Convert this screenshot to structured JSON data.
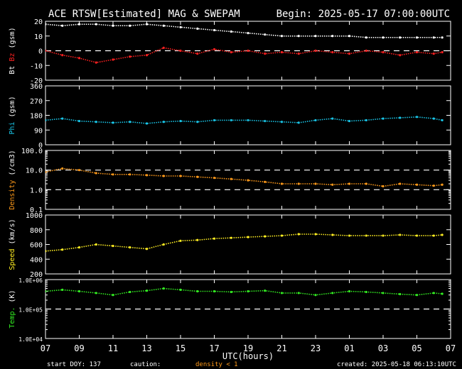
{
  "header": {
    "title": "ACE RTSW[Estimated] MAG & SWEPAM",
    "begin": "Begin: 2025-05-17 07:00:00UTC"
  },
  "footer": {
    "start_doy": "start DOY: 137",
    "caution": "caution:",
    "density_note": "density < 1",
    "created": "created: 2025-05-18 06:13:10UTC"
  },
  "x_axis": {
    "label": "UTC(hours)",
    "ticks": [
      "07",
      "09",
      "11",
      "13",
      "15",
      "17",
      "19",
      "21",
      "23",
      "01",
      "03",
      "05",
      "07"
    ]
  },
  "colors": {
    "bt": "#ffffff",
    "bz": "#ff2020",
    "phi": "#19c4e6",
    "density": "#ff9a1a",
    "speed": "#ffee22",
    "temp": "#33ee22",
    "axes": "#ffffff",
    "dash": "#ffffff"
  },
  "chart_data": [
    {
      "type": "scatter",
      "panel": "bt_bz",
      "ylabel_parts": [
        "Bt",
        "Bz",
        "(gsm)"
      ],
      "ylim": [
        -20,
        20
      ],
      "yticks": [
        "20",
        "10",
        "0",
        "-10",
        "-20"
      ],
      "reference_lines": [
        0
      ],
      "x_range_hours": [
        0,
        24
      ],
      "series": [
        {
          "name": "Bt",
          "color": "#ffffff",
          "x": [
            0,
            1,
            2,
            3,
            4,
            5,
            6,
            7,
            8,
            9,
            10,
            11,
            12,
            13,
            14,
            15,
            16,
            17,
            18,
            19,
            20,
            21,
            22,
            23,
            23.5
          ],
          "y": [
            18,
            17,
            18,
            18,
            17,
            17,
            18,
            17,
            16,
            15,
            14,
            13,
            12,
            11,
            10,
            10,
            10,
            10,
            10,
            9,
            9,
            9,
            9,
            9,
            9
          ]
        },
        {
          "name": "Bz",
          "color": "#ff2020",
          "x": [
            0,
            1,
            2,
            3,
            4,
            5,
            6,
            7,
            8,
            9,
            10,
            11,
            12,
            13,
            14,
            15,
            16,
            17,
            18,
            19,
            20,
            21,
            22,
            23,
            23.5
          ],
          "y": [
            0,
            -3,
            -5,
            -8,
            -6,
            -4,
            -3,
            2,
            0,
            -2,
            1,
            -1,
            0,
            -2,
            -1,
            -2,
            0,
            -1,
            -2,
            0,
            -1,
            -3,
            -1,
            -2,
            -1
          ]
        }
      ]
    },
    {
      "type": "scatter",
      "panel": "phi",
      "ylabel_parts": [
        "Phi",
        "(gsm)"
      ],
      "ylim": [
        0,
        360
      ],
      "yticks": [
        "360",
        "270",
        "180",
        "90",
        "0"
      ],
      "x_range_hours": [
        0,
        24
      ],
      "series": [
        {
          "name": "Phi",
          "color": "#19c4e6",
          "x": [
            0,
            1,
            2,
            3,
            4,
            5,
            6,
            7,
            8,
            9,
            10,
            11,
            12,
            13,
            14,
            15,
            16,
            17,
            18,
            19,
            20,
            21,
            22,
            23,
            23.5
          ],
          "y": [
            150,
            160,
            145,
            140,
            135,
            140,
            130,
            140,
            145,
            140,
            150,
            150,
            150,
            145,
            140,
            135,
            150,
            160,
            145,
            150,
            160,
            165,
            170,
            160,
            150
          ]
        }
      ]
    },
    {
      "type": "scatter",
      "panel": "density",
      "ylabel_parts": [
        "Density",
        "(/cm3)"
      ],
      "yscale": "log",
      "ylim": [
        0.1,
        100
      ],
      "yticks": [
        "100.0",
        "10.0",
        "1.0",
        "0.1"
      ],
      "reference_lines": [
        10,
        1
      ],
      "x_range_hours": [
        0,
        24
      ],
      "series": [
        {
          "name": "Density",
          "color": "#ff9a1a",
          "x": [
            0,
            1,
            2,
            3,
            4,
            5,
            6,
            7,
            8,
            9,
            10,
            11,
            12,
            13,
            14,
            15,
            16,
            17,
            18,
            19,
            20,
            21,
            22,
            23,
            23.5
          ],
          "y": [
            8,
            12,
            10,
            7,
            6,
            6,
            5.5,
            5,
            5,
            4.5,
            4,
            3.5,
            3,
            2.5,
            2,
            2,
            2,
            1.8,
            2,
            2,
            1.5,
            2,
            1.8,
            1.6,
            1.8
          ]
        }
      ]
    },
    {
      "type": "scatter",
      "panel": "speed",
      "ylabel_parts": [
        "Speed",
        "(km/s)"
      ],
      "ylim": [
        200,
        1000
      ],
      "yticks": [
        "1000",
        "800",
        "600",
        "400",
        "200"
      ],
      "x_range_hours": [
        0,
        24
      ],
      "series": [
        {
          "name": "Speed",
          "color": "#ffee22",
          "x": [
            0,
            1,
            2,
            3,
            4,
            5,
            6,
            7,
            8,
            9,
            10,
            11,
            12,
            13,
            14,
            15,
            16,
            17,
            18,
            19,
            20,
            21,
            22,
            23,
            23.5
          ],
          "y": [
            510,
            530,
            560,
            600,
            580,
            560,
            540,
            600,
            650,
            660,
            680,
            690,
            700,
            710,
            720,
            740,
            740,
            730,
            720,
            720,
            720,
            730,
            720,
            720,
            730
          ]
        }
      ]
    },
    {
      "type": "scatter",
      "panel": "temp",
      "ylabel_parts": [
        "Temp.",
        "(K)"
      ],
      "yscale": "log",
      "ylim": [
        10000,
        1000000
      ],
      "yticks": [
        "1.0E+06",
        "1.0E+05",
        "1.0E+04"
      ],
      "reference_lines": [
        100000
      ],
      "x_range_hours": [
        0,
        24
      ],
      "series": [
        {
          "name": "Temp",
          "color": "#33ee22",
          "x": [
            0,
            1,
            2,
            3,
            4,
            5,
            6,
            7,
            8,
            9,
            10,
            11,
            12,
            13,
            14,
            15,
            16,
            17,
            18,
            19,
            20,
            21,
            22,
            23,
            23.5
          ],
          "y": [
            400000,
            450000,
            400000,
            350000,
            300000,
            380000,
            420000,
            500000,
            450000,
            400000,
            400000,
            380000,
            400000,
            420000,
            350000,
            350000,
            300000,
            350000,
            400000,
            380000,
            350000,
            320000,
            300000,
            350000,
            330000
          ]
        }
      ]
    }
  ]
}
